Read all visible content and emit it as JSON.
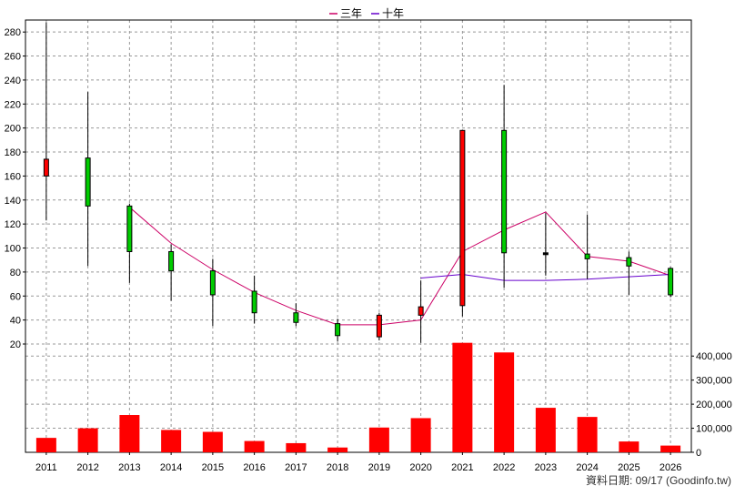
{
  "chart_data": {
    "type": "candlestick+line+bar",
    "legend": [
      {
        "label": "三年",
        "color": "#cc0066"
      },
      {
        "label": "十年",
        "color": "#6600cc"
      }
    ],
    "years": [
      "2011",
      "2012",
      "2013",
      "2014",
      "2015",
      "2016",
      "2017",
      "2018",
      "2019",
      "2020",
      "2021",
      "2022",
      "2023",
      "2024",
      "2025",
      "2026"
    ],
    "price_axis": {
      "ticks": [
        20,
        40,
        60,
        80,
        100,
        120,
        140,
        160,
        180,
        200,
        220,
        240,
        260,
        280
      ],
      "range": [
        20,
        290
      ]
    },
    "volume_axis": {
      "ticks": [
        0,
        100000,
        200000,
        300000,
        400000
      ],
      "tick_labels": [
        "0",
        "100,000",
        "200,000",
        "300,000",
        "400,000"
      ],
      "range": [
        0,
        450000
      ]
    },
    "candles": [
      {
        "year": "2011",
        "open": 160,
        "close": 174,
        "high": 288,
        "low": 123,
        "color": "red"
      },
      {
        "year": "2012",
        "open": 175,
        "close": 135,
        "high": 230,
        "low": 85,
        "color": "green"
      },
      {
        "year": "2013",
        "open": 135,
        "close": 97,
        "high": 137,
        "low": 71,
        "color": "green"
      },
      {
        "year": "2014",
        "open": 97,
        "close": 81,
        "high": 103,
        "low": 56,
        "color": "green"
      },
      {
        "year": "2015",
        "open": 81,
        "close": 61,
        "high": 91,
        "low": 35,
        "color": "green"
      },
      {
        "year": "2016",
        "open": 64,
        "close": 46,
        "high": 77,
        "low": 37,
        "color": "green"
      },
      {
        "year": "2017",
        "open": 46,
        "close": 38,
        "high": 54,
        "low": 35,
        "color": "green"
      },
      {
        "year": "2018",
        "open": 37,
        "close": 27,
        "high": 41,
        "low": 22,
        "color": "green"
      },
      {
        "year": "2019",
        "open": 26,
        "close": 44,
        "high": 46,
        "low": 23,
        "color": "red"
      },
      {
        "year": "2020",
        "open": 44,
        "close": 51,
        "high": 73,
        "low": 21,
        "color": "red"
      },
      {
        "year": "2021",
        "open": 52,
        "close": 198,
        "high": 198,
        "low": 43,
        "color": "red"
      },
      {
        "year": "2022",
        "open": 198,
        "close": 96,
        "high": 236,
        "low": 67,
        "color": "green"
      },
      {
        "year": "2023",
        "open": 96,
        "close": 95,
        "high": 129,
        "low": 77,
        "color": "black"
      },
      {
        "year": "2024",
        "open": 95,
        "close": 91,
        "high": 128,
        "low": 74,
        "color": "green"
      },
      {
        "year": "2025",
        "open": 92,
        "close": 85,
        "high": 97,
        "low": 61,
        "color": "green"
      },
      {
        "year": "2026",
        "open": 83,
        "close": 61,
        "high": 84,
        "low": 59,
        "color": "green"
      }
    ],
    "ma_3yr": [
      null,
      null,
      134,
      104,
      82,
      63,
      48,
      36,
      36,
      40,
      97,
      115,
      130,
      93,
      89,
      77
    ],
    "ma_10yr": [
      null,
      null,
      null,
      null,
      null,
      null,
      null,
      null,
      null,
      75,
      78,
      73,
      73,
      74,
      76,
      78
    ],
    "volume": [
      60000,
      100000,
      155000,
      93000,
      85000,
      47000,
      38000,
      20000,
      103000,
      142000,
      455000,
      415000,
      185000,
      147000,
      45000,
      28000
    ],
    "footer": "資料日期: 09/17  (Goodinfo.tw)"
  }
}
